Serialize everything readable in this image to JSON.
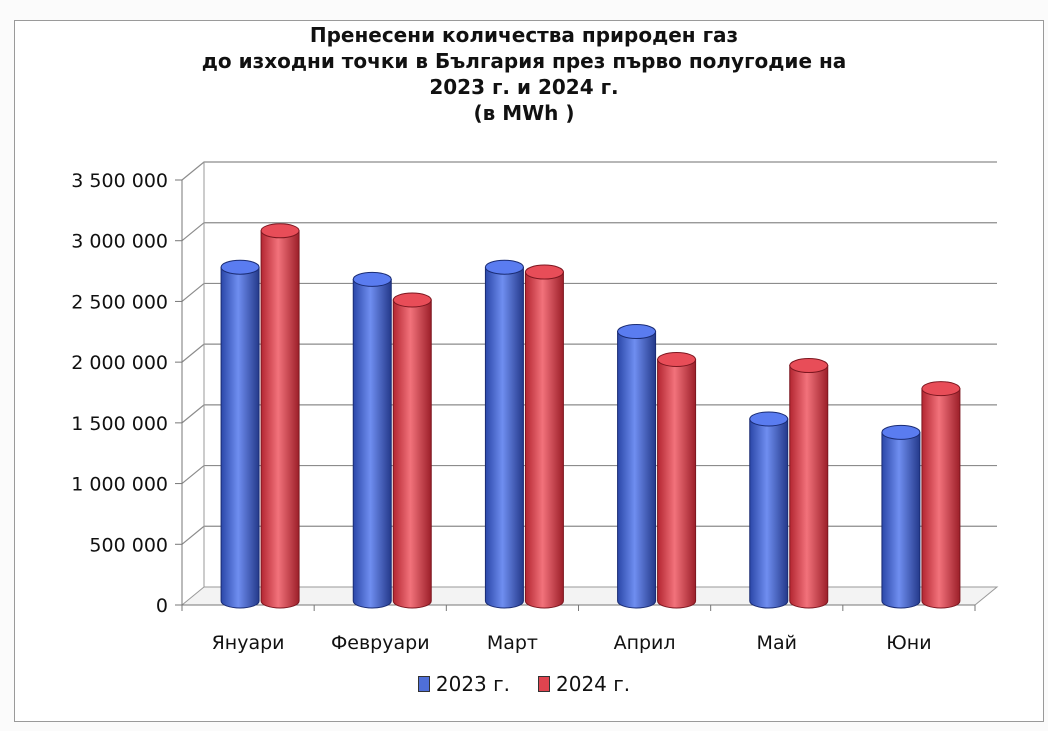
{
  "chart_data": {
    "type": "bar",
    "title": [
      "Пренесени количества природен газ",
      "до изходни точки в България през първо полугодие на",
      "2023 г. и 2024 г.",
      "(в MWh )"
    ],
    "xlabel": "",
    "ylabel": "",
    "ylim": [
      0,
      3500000
    ],
    "yticks": [
      "0",
      "500 000",
      "1 000 000",
      "1 500 000",
      "2 000 000",
      "2 500 000",
      "3 000 000",
      "3 500 000"
    ],
    "grid": true,
    "legend": "bottom",
    "categories": [
      "Януари",
      "Февруари",
      "Март",
      "Април",
      "Май",
      "Юни"
    ],
    "series": [
      {
        "name": "2023 г.",
        "color": "#4f6fd8",
        "values": [
          2730000,
          2630000,
          2730000,
          2200000,
          1480000,
          1370000
        ]
      },
      {
        "name": "2024 г.",
        "color": "#e0444f",
        "values": [
          3030000,
          2460000,
          2690000,
          1970000,
          1920000,
          1730000
        ]
      }
    ]
  }
}
